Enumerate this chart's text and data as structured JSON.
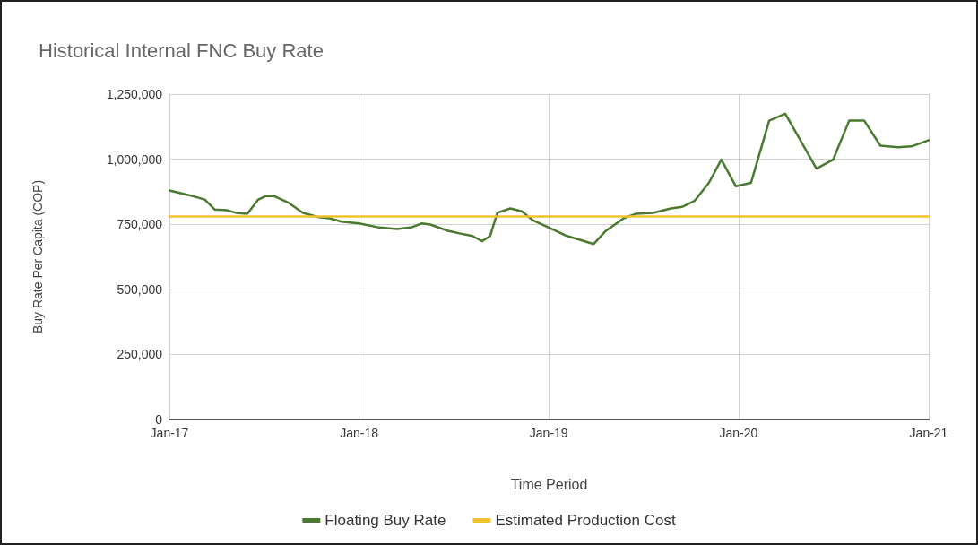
{
  "chart_data": {
    "type": "line",
    "title": "Historical Internal FNC Buy Rate",
    "xlabel": "Time Period",
    "ylabel": "Buy Rate Per Capita (COP)",
    "xlim": [
      "2017-01",
      "2021-01"
    ],
    "xticks": [
      {
        "value": "2017-01",
        "label": "Jan-17"
      },
      {
        "value": "2018-01",
        "label": "Jan-18"
      },
      {
        "value": "2019-01",
        "label": "Jan-19"
      },
      {
        "value": "2020-01",
        "label": "Jan-20"
      },
      {
        "value": "2021-01",
        "label": "Jan-21"
      }
    ],
    "ylim": [
      0,
      1250000
    ],
    "yticks": [
      {
        "value": 0,
        "label": "0"
      },
      {
        "value": 250000,
        "label": "250,000"
      },
      {
        "value": 500000,
        "label": "500,000"
      },
      {
        "value": 750000,
        "label": "750,000"
      },
      {
        "value": 1000000,
        "label": "1,000,000"
      },
      {
        "value": 1250000,
        "label": "1,250,000"
      }
    ],
    "grid": true,
    "legend": "bottom",
    "marker": "none",
    "line_style": "solid",
    "series": [
      {
        "name": "Floating Buy Rate",
        "color": "#4a7a2e",
        "x": [
          "2017-01-01",
          "2017-02-15",
          "2017-03-10",
          "2017-03-29",
          "2017-04-22",
          "2017-05-09",
          "2017-05-31",
          "2017-06-21",
          "2017-07-05",
          "2017-07-22",
          "2017-08-17",
          "2017-09-15",
          "2017-10-16",
          "2017-11-05",
          "2017-11-28",
          "2018-01-01",
          "2018-02-05",
          "2018-03-15",
          "2018-04-13",
          "2018-05-01",
          "2018-05-18",
          "2018-06-21",
          "2018-07-13",
          "2018-08-07",
          "2018-08-26",
          "2018-09-10",
          "2018-09-24",
          "2018-10-19",
          "2018-11-10",
          "2018-12-01",
          "2019-02-05",
          "2019-03-06",
          "2019-03-28",
          "2019-04-21",
          "2019-05-25",
          "2019-06-17",
          "2019-07-21",
          "2019-08-24",
          "2019-09-15",
          "2019-10-09",
          "2019-11-05",
          "2019-11-29",
          "2019-12-27",
          "2020-01-25",
          "2020-02-29",
          "2020-03-31",
          "2020-04-29",
          "2020-05-30",
          "2020-07-01",
          "2020-08-01",
          "2020-08-30",
          "2020-09-30",
          "2020-11-03",
          "2020-11-29",
          "2021-01-01"
        ],
        "values": [
          880000,
          858000,
          845000,
          807000,
          804000,
          794000,
          790000,
          845000,
          858000,
          858000,
          834000,
          794000,
          777000,
          773000,
          760000,
          753000,
          739000,
          732000,
          739000,
          753000,
          749000,
          725000,
          715000,
          705000,
          685000,
          705000,
          794000,
          811000,
          800000,
          766000,
          705000,
          688000,
          674000,
          725000,
          773000,
          790000,
          794000,
          811000,
          817000,
          841000,
          909000,
          998000,
          896000,
          909000,
          1148000,
          1175000,
          1073000,
          964000,
          998000,
          1148000,
          1148000,
          1052000,
          1046000,
          1049000,
          1073000
        ]
      },
      {
        "name": "Estimated Production Cost",
        "color": "#f2c12e",
        "x": [
          "2017-01-01",
          "2021-01-01"
        ],
        "values": [
          780000,
          780000
        ]
      }
    ]
  }
}
